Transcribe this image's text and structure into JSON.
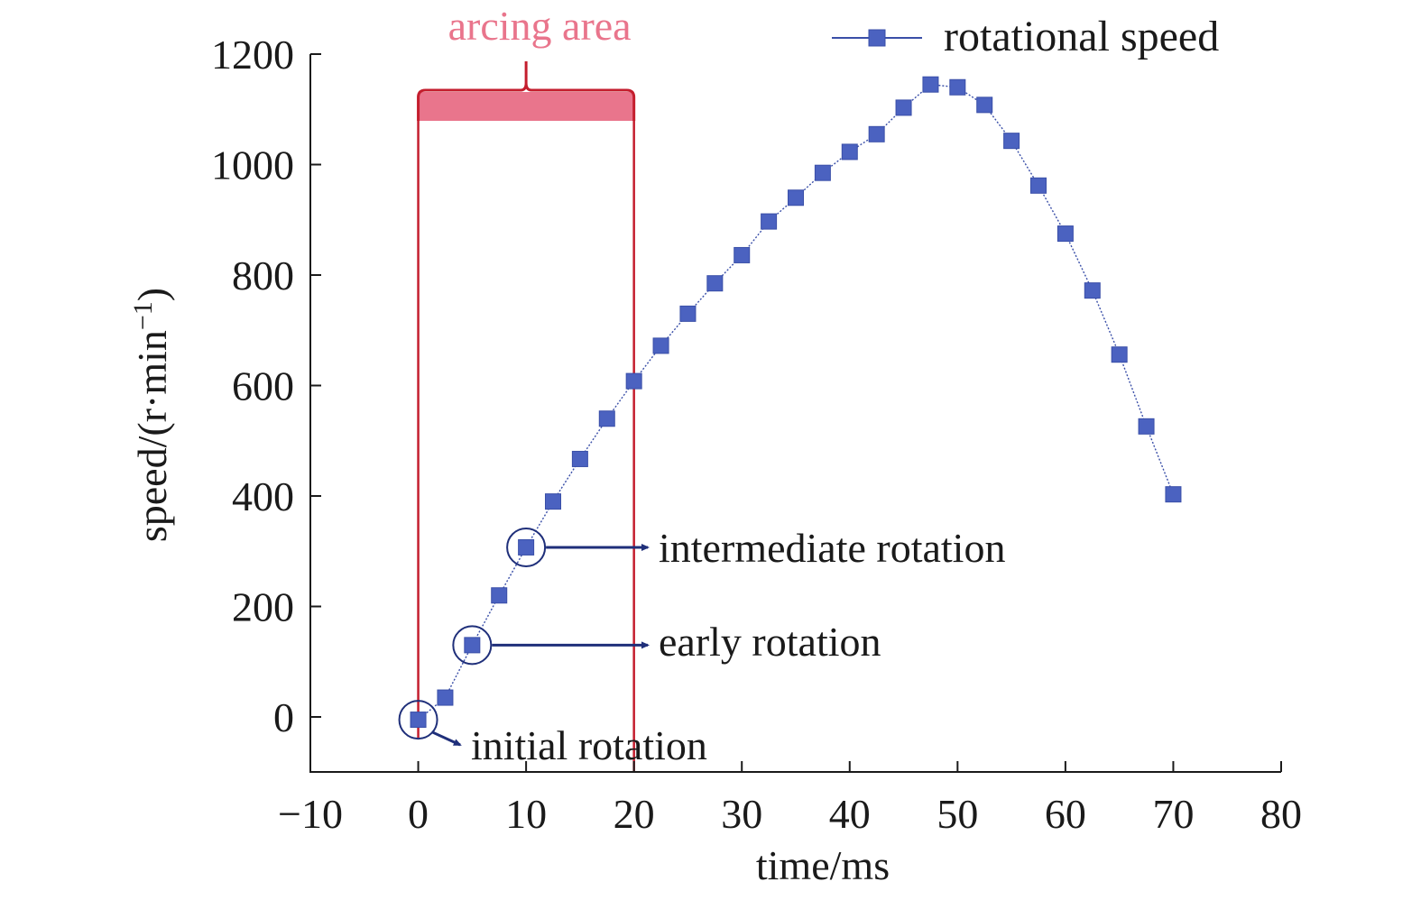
{
  "chart_data": {
    "type": "line",
    "title": "",
    "xlabel": "time/ms",
    "ylabel": "speed/(r·min",
    "ylabel_sup": "−1",
    "ylabel_close": ")",
    "xlim": [
      -10,
      80
    ],
    "ylim": [
      -100,
      1200
    ],
    "xticks": [
      -10,
      0,
      10,
      20,
      30,
      40,
      50,
      60,
      70,
      80
    ],
    "xtick_labels": [
      "−10",
      "0",
      "10",
      "20",
      "30",
      "40",
      "50",
      "60",
      "70",
      "80"
    ],
    "yticks": [
      0,
      200,
      400,
      600,
      800,
      1000,
      1200
    ],
    "ytick_labels": [
      "0",
      "200",
      "400",
      "600",
      "800",
      "1000",
      "1200"
    ],
    "grid": false,
    "legend_position": "top-right",
    "series": [
      {
        "name": "rotational speed",
        "color": "#3a4fa8",
        "x": [
          0,
          2.5,
          5,
          7.5,
          10,
          12.5,
          15,
          17.5,
          20,
          22.5,
          25,
          27.5,
          30,
          32.5,
          35,
          37.5,
          40,
          42.5,
          45,
          47.5,
          50,
          52.5,
          55,
          57.5,
          60,
          62.5,
          65,
          67.5,
          70
        ],
        "y": [
          -5,
          35,
          130,
          220,
          307,
          390,
          467,
          540,
          608,
          672,
          730,
          785,
          836,
          897,
          940,
          985,
          1023,
          1055,
          1103,
          1145,
          1140,
          1108,
          1043,
          962,
          875,
          772,
          656,
          526,
          403
        ]
      }
    ],
    "arcing_area": {
      "label": "arcing area",
      "x_start": 0,
      "x_end": 20,
      "color": "#e9758c",
      "edge_color": "#c41e2e"
    },
    "annotations": [
      {
        "text": "initial rotation",
        "x": 0,
        "y": -5
      },
      {
        "text": "early rotation",
        "x": 5,
        "y": 130
      },
      {
        "text": "intermediate rotation",
        "x": 10,
        "y": 307
      }
    ]
  }
}
